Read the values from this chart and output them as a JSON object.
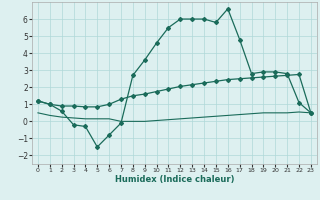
{
  "xlabel": "Humidex (Indice chaleur)",
  "x": [
    0,
    1,
    2,
    3,
    4,
    5,
    6,
    7,
    8,
    9,
    10,
    11,
    12,
    13,
    14,
    15,
    16,
    17,
    18,
    19,
    20,
    21,
    22,
    23
  ],
  "line1_y": [
    1.2,
    1.0,
    0.6,
    -0.2,
    -0.3,
    -1.5,
    -0.8,
    -0.1,
    2.7,
    3.6,
    4.6,
    5.5,
    6.0,
    6.0,
    6.0,
    5.8,
    6.6,
    4.8,
    2.8,
    2.9,
    2.9,
    2.8,
    1.1,
    0.5
  ],
  "line2_y": [
    1.2,
    1.0,
    0.9,
    0.9,
    0.85,
    0.85,
    1.0,
    1.3,
    1.5,
    1.6,
    1.75,
    1.9,
    2.05,
    2.15,
    2.25,
    2.35,
    2.45,
    2.5,
    2.55,
    2.6,
    2.65,
    2.7,
    2.75,
    0.5
  ],
  "line3_y": [
    0.5,
    0.35,
    0.25,
    0.2,
    0.15,
    0.15,
    0.15,
    0.0,
    0.0,
    0.0,
    0.05,
    0.1,
    0.15,
    0.2,
    0.25,
    0.3,
    0.35,
    0.4,
    0.45,
    0.5,
    0.5,
    0.5,
    0.55,
    0.5
  ],
  "line_color": "#1a6b5a",
  "bg_color": "#ddf0f0",
  "grid_color": "#b0d8d8",
  "ylim": [
    -2.5,
    7.0
  ],
  "xlim": [
    -0.5,
    23.5
  ],
  "yticks": [
    -2,
    -1,
    0,
    1,
    2,
    3,
    4,
    5,
    6
  ],
  "xticks": [
    0,
    1,
    2,
    3,
    4,
    5,
    6,
    7,
    8,
    9,
    10,
    11,
    12,
    13,
    14,
    15,
    16,
    17,
    18,
    19,
    20,
    21,
    22,
    23
  ]
}
